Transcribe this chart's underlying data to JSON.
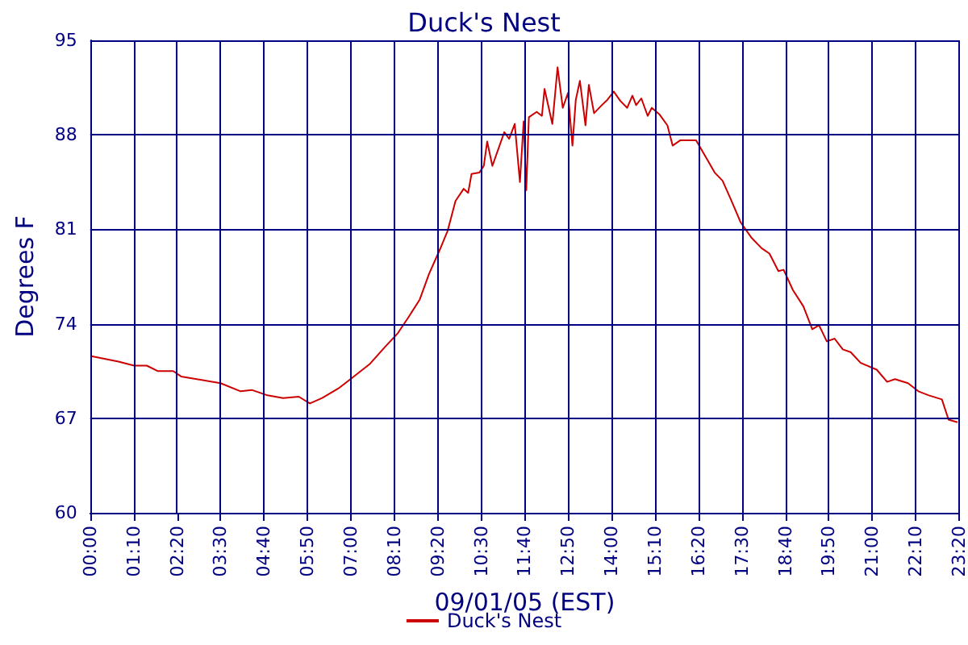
{
  "chart_data": {
    "type": "line",
    "title": "Duck's Nest",
    "xlabel": "09/01/05 (EST)",
    "ylabel": "Degrees F",
    "xlim": [
      0,
      23.3333
    ],
    "ylim": [
      60,
      95
    ],
    "xticks": [
      {
        "value": 0,
        "label": "00:00"
      },
      {
        "value": 1.1667,
        "label": "01:10"
      },
      {
        "value": 2.3333,
        "label": "02:20"
      },
      {
        "value": 3.5,
        "label": "03:30"
      },
      {
        "value": 4.6667,
        "label": "04:40"
      },
      {
        "value": 5.8333,
        "label": "05:50"
      },
      {
        "value": 7,
        "label": "07:00"
      },
      {
        "value": 8.1667,
        "label": "08:10"
      },
      {
        "value": 9.3333,
        "label": "09:20"
      },
      {
        "value": 10.5,
        "label": "10:30"
      },
      {
        "value": 11.6667,
        "label": "11:40"
      },
      {
        "value": 12.8333,
        "label": "12:50"
      },
      {
        "value": 14,
        "label": "14:00"
      },
      {
        "value": 15.1667,
        "label": "15:10"
      },
      {
        "value": 16.3333,
        "label": "16:20"
      },
      {
        "value": 17.5,
        "label": "17:30"
      },
      {
        "value": 18.6667,
        "label": "18:40"
      },
      {
        "value": 19.8333,
        "label": "19:50"
      },
      {
        "value": 21,
        "label": "21:00"
      },
      {
        "value": 22.1667,
        "label": "22:10"
      },
      {
        "value": 23.3333,
        "label": "23:20"
      }
    ],
    "yticks": [
      60,
      67,
      74,
      81,
      88,
      95
    ],
    "grid": true,
    "legend": "bottom",
    "marker": "none",
    "line_style": "solid",
    "series": [
      {
        "name": "Duck's Nest",
        "color": "#cc0000",
        "x": [
          0.03,
          0.76,
          1.18,
          1.52,
          1.81,
          2.23,
          2.44,
          2.86,
          3.5,
          4.04,
          4.34,
          4.76,
          5.18,
          5.6,
          5.9,
          6.23,
          6.66,
          6.99,
          7.5,
          7.92,
          8.26,
          8.55,
          8.85,
          9.1,
          9.39,
          9.6,
          9.81,
          10.03,
          10.15,
          10.24,
          10.45,
          10.57,
          10.66,
          10.8,
          11.12,
          11.25,
          11.4,
          11.54,
          11.64,
          11.71,
          11.78,
          11.99,
          12.13,
          12.2,
          12.41,
          12.55,
          12.69,
          12.83,
          12.95,
          13.04,
          13.15,
          13.3,
          13.39,
          13.53,
          13.74,
          13.89,
          14.06,
          14.24,
          14.42,
          14.56,
          14.66,
          14.8,
          14.97,
          15.08,
          15.29,
          15.5,
          15.64,
          15.85,
          16.06,
          16.27,
          16.48,
          16.77,
          16.98,
          17.19,
          17.47,
          17.75,
          18.03,
          18.24,
          18.48,
          18.62,
          18.87,
          19.15,
          19.39,
          19.57,
          19.78,
          19.99,
          20.21,
          20.42,
          20.69,
          21.12,
          21.4,
          21.61,
          21.96,
          22.24,
          22.52,
          22.87,
          23.05,
          23.29
        ],
        "values": [
          71.6,
          71.2,
          70.9,
          70.9,
          70.5,
          70.5,
          70.1,
          69.9,
          69.6,
          69.0,
          69.1,
          68.7,
          68.5,
          68.6,
          68.1,
          68.5,
          69.2,
          69.9,
          71.0,
          72.3,
          73.3,
          74.5,
          75.8,
          77.7,
          79.5,
          80.9,
          83.1,
          84.0,
          83.7,
          85.1,
          85.2,
          85.7,
          87.5,
          85.7,
          88.2,
          87.7,
          88.8,
          84.5,
          89.0,
          83.9,
          89.3,
          89.7,
          89.4,
          91.4,
          88.8,
          93.0,
          90.0,
          91.1,
          87.2,
          90.6,
          92.0,
          88.7,
          91.7,
          89.6,
          90.2,
          90.6,
          91.2,
          90.5,
          90.0,
          90.9,
          90.2,
          90.7,
          89.4,
          90.0,
          89.5,
          88.7,
          87.2,
          87.6,
          87.6,
          87.6,
          86.6,
          85.2,
          84.6,
          83.3,
          81.5,
          80.4,
          79.6,
          79.2,
          77.9,
          78.0,
          76.5,
          75.3,
          73.6,
          73.9,
          72.7,
          72.9,
          72.1,
          71.9,
          71.1,
          70.6,
          69.7,
          69.9,
          69.6,
          69.0,
          68.7,
          68.4,
          66.9,
          66.7
        ]
      }
    ]
  }
}
